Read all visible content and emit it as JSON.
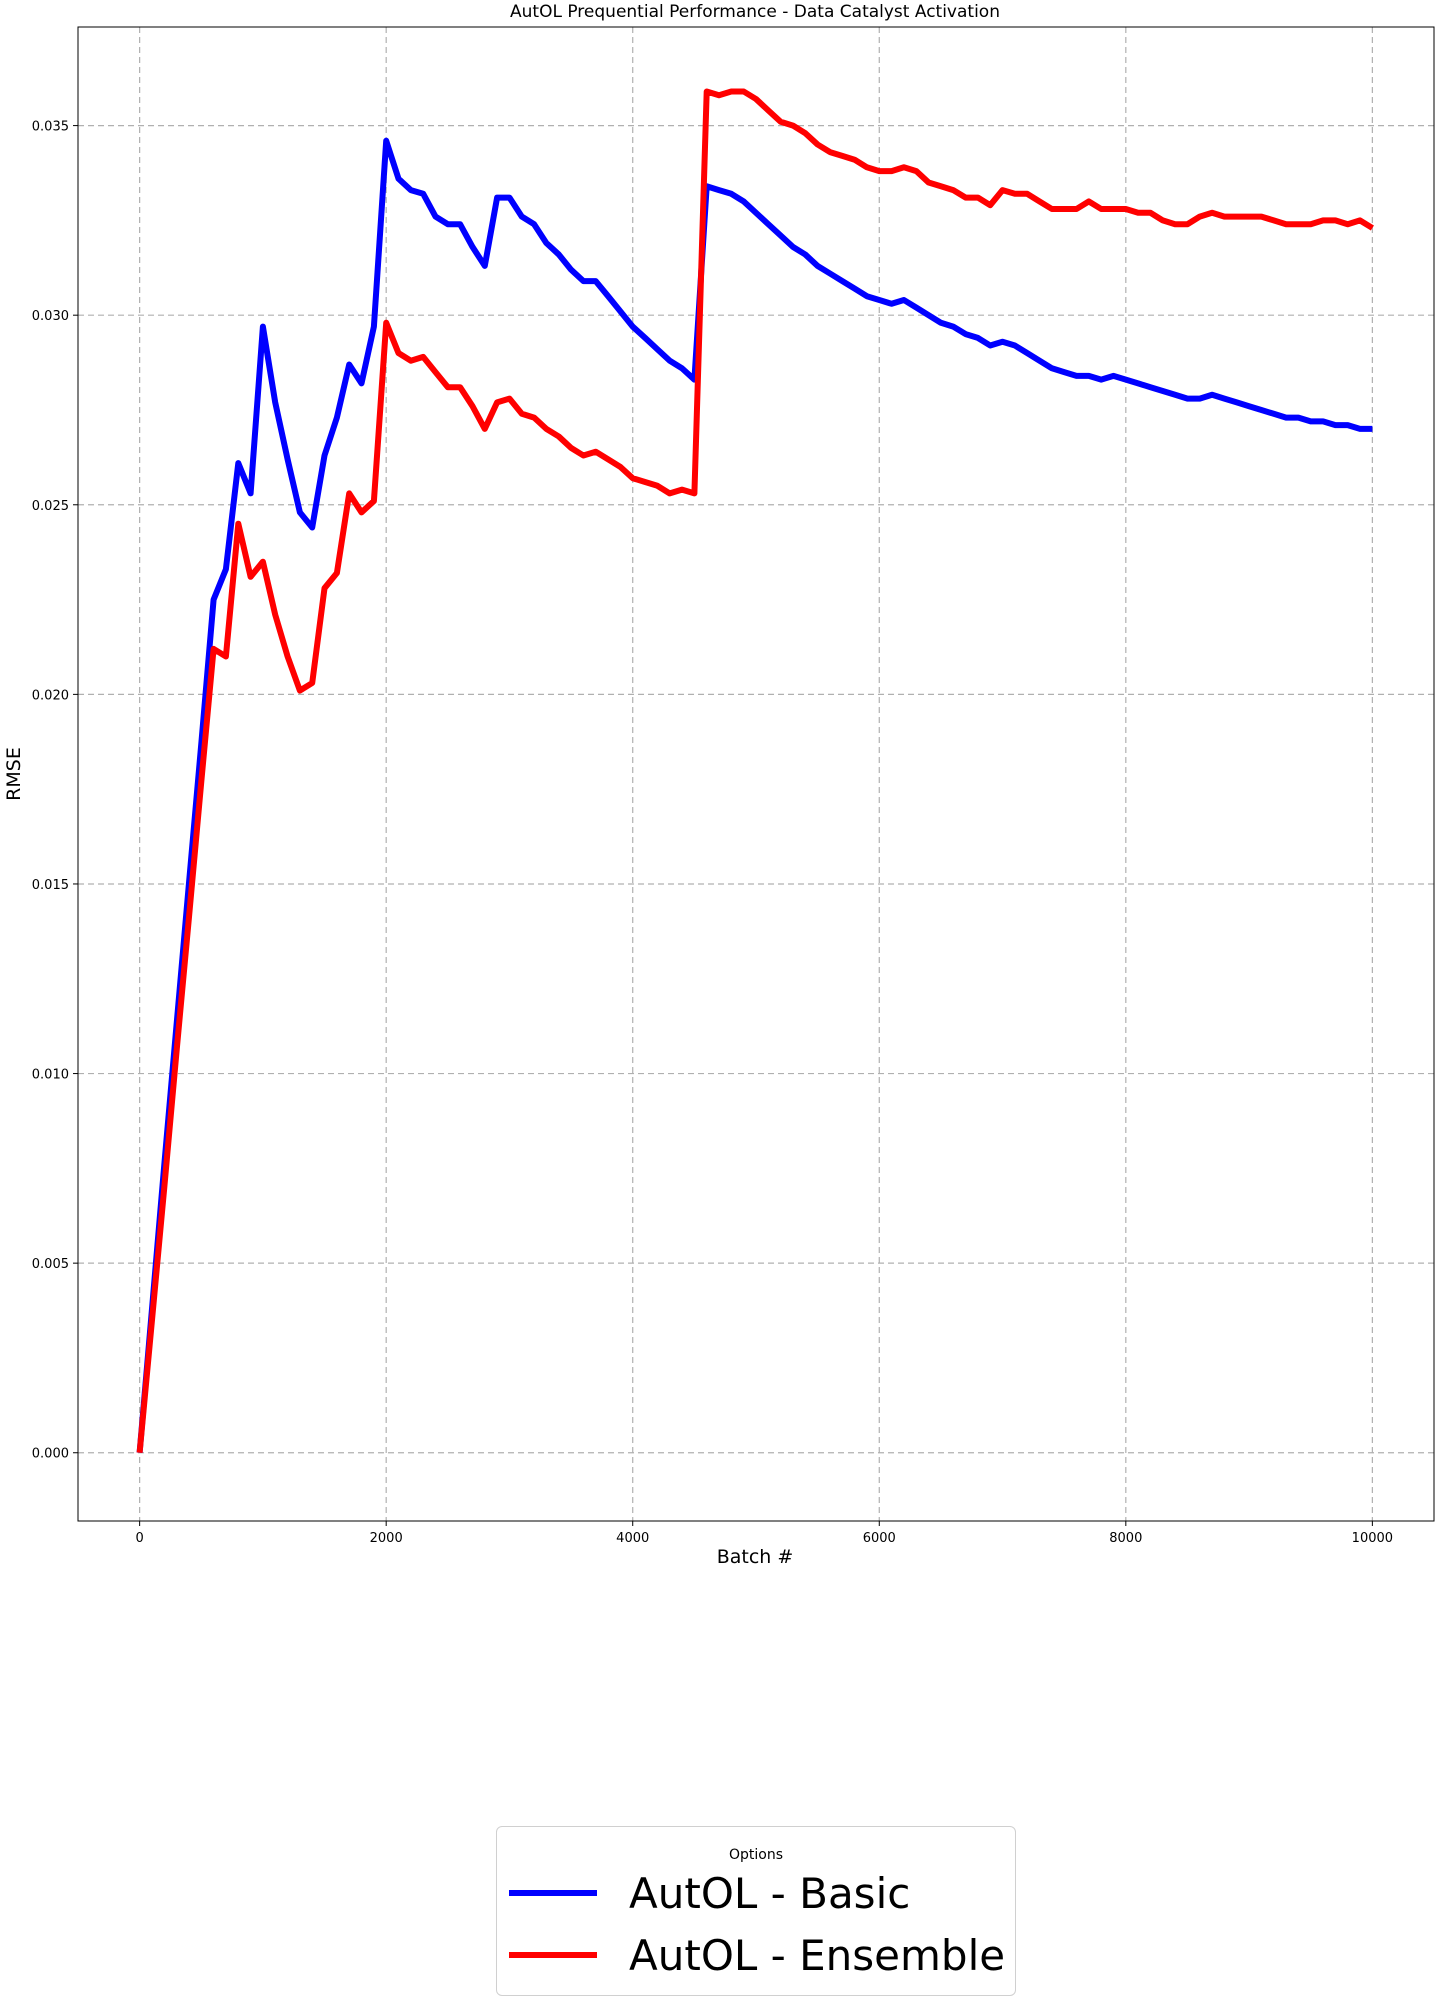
{
  "chart_data": {
    "type": "line",
    "title": "AutOL Prequential Performance - Data Catalyst Activation",
    "xlabel": "Batch #",
    "ylabel": "RMSE",
    "xlim": [
      -500,
      10500
    ],
    "ylim": [
      -0.0018,
      0.0376
    ],
    "x_ticks": [
      0,
      2000,
      4000,
      6000,
      8000,
      10000
    ],
    "x_tick_labels": [
      "0",
      "2000",
      "4000",
      "6000",
      "8000",
      "10000"
    ],
    "y_ticks": [
      0.0,
      0.005,
      0.01,
      0.015,
      0.02,
      0.025,
      0.03,
      0.035
    ],
    "y_tick_labels": [
      "0.000",
      "0.005",
      "0.010",
      "0.015",
      "0.020",
      "0.025",
      "0.030",
      "0.035"
    ],
    "grid": true,
    "legend": {
      "title": "Options",
      "placement": "bottom-center"
    },
    "x": [
      0,
      100,
      200,
      300,
      400,
      500,
      600,
      700,
      800,
      900,
      1000,
      1100,
      1200,
      1300,
      1400,
      1500,
      1600,
      1700,
      1800,
      1900,
      2000,
      2100,
      2200,
      2300,
      2400,
      2500,
      2600,
      2700,
      2800,
      2900,
      3000,
      3100,
      3200,
      3300,
      3400,
      3500,
      3600,
      3700,
      3800,
      3900,
      4000,
      4100,
      4200,
      4300,
      4400,
      4500,
      4600,
      4700,
      4800,
      4900,
      5000,
      5100,
      5200,
      5300,
      5400,
      5500,
      5600,
      5700,
      5800,
      5900,
      6000,
      6100,
      6200,
      6300,
      6400,
      6500,
      6600,
      6700,
      6800,
      6900,
      7000,
      7100,
      7200,
      7300,
      7400,
      7500,
      7600,
      7700,
      7800,
      7900,
      8000,
      8100,
      8200,
      8300,
      8400,
      8500,
      8600,
      8700,
      8800,
      8900,
      9000,
      9100,
      9200,
      9300,
      9400,
      9500,
      9600,
      9700,
      9800,
      9900,
      10000
    ],
    "series": [
      {
        "name": "AutOL - Basic",
        "color": "#0000ff",
        "values": [
          0.0,
          0.0038,
          0.0076,
          0.0113,
          0.015,
          0.0187,
          0.0225,
          0.0233,
          0.0261,
          0.0253,
          0.0297,
          0.0277,
          0.0262,
          0.0248,
          0.0244,
          0.0263,
          0.0273,
          0.0287,
          0.0282,
          0.0297,
          0.0346,
          0.0336,
          0.0333,
          0.0332,
          0.0326,
          0.0324,
          0.0324,
          0.0318,
          0.0313,
          0.0331,
          0.0331,
          0.0326,
          0.0324,
          0.0319,
          0.0316,
          0.0312,
          0.0309,
          0.0309,
          0.0305,
          0.0301,
          0.0297,
          0.0294,
          0.0291,
          0.0288,
          0.0286,
          0.0283,
          0.0334,
          0.0333,
          0.0332,
          0.033,
          0.0327,
          0.0324,
          0.0321,
          0.0318,
          0.0316,
          0.0313,
          0.0311,
          0.0309,
          0.0307,
          0.0305,
          0.0304,
          0.0303,
          0.0304,
          0.0302,
          0.03,
          0.0298,
          0.0297,
          0.0295,
          0.0294,
          0.0292,
          0.0293,
          0.0292,
          0.029,
          0.0288,
          0.0286,
          0.0285,
          0.0284,
          0.0284,
          0.0283,
          0.0284,
          0.0283,
          0.0282,
          0.0281,
          0.028,
          0.0279,
          0.0278,
          0.0278,
          0.0279,
          0.0278,
          0.0277,
          0.0276,
          0.0275,
          0.0274,
          0.0273,
          0.0273,
          0.0272,
          0.0272,
          0.0271,
          0.0271,
          0.027,
          0.027
        ]
      },
      {
        "name": "AutOL - Ensemble",
        "color": "#ff0000",
        "values": [
          0.0,
          0.0035,
          0.007,
          0.0106,
          0.0141,
          0.0177,
          0.0212,
          0.021,
          0.0245,
          0.0231,
          0.0235,
          0.0221,
          0.021,
          0.0201,
          0.0203,
          0.0228,
          0.0232,
          0.0253,
          0.0248,
          0.0251,
          0.0298,
          0.029,
          0.0288,
          0.0289,
          0.0285,
          0.0281,
          0.0281,
          0.0276,
          0.027,
          0.0277,
          0.0278,
          0.0274,
          0.0273,
          0.027,
          0.0268,
          0.0265,
          0.0263,
          0.0264,
          0.0262,
          0.026,
          0.0257,
          0.0256,
          0.0255,
          0.0253,
          0.0254,
          0.0253,
          0.0359,
          0.0358,
          0.0359,
          0.0359,
          0.0357,
          0.0354,
          0.0351,
          0.035,
          0.0348,
          0.0345,
          0.0343,
          0.0342,
          0.0341,
          0.0339,
          0.0338,
          0.0338,
          0.0339,
          0.0338,
          0.0335,
          0.0334,
          0.0333,
          0.0331,
          0.0331,
          0.0329,
          0.0333,
          0.0332,
          0.0332,
          0.033,
          0.0328,
          0.0328,
          0.0328,
          0.033,
          0.0328,
          0.0328,
          0.0328,
          0.0327,
          0.0327,
          0.0325,
          0.0324,
          0.0324,
          0.0326,
          0.0327,
          0.0326,
          0.0326,
          0.0326,
          0.0326,
          0.0325,
          0.0324,
          0.0324,
          0.0324,
          0.0325,
          0.0325,
          0.0324,
          0.0325,
          0.0323
        ]
      }
    ]
  }
}
